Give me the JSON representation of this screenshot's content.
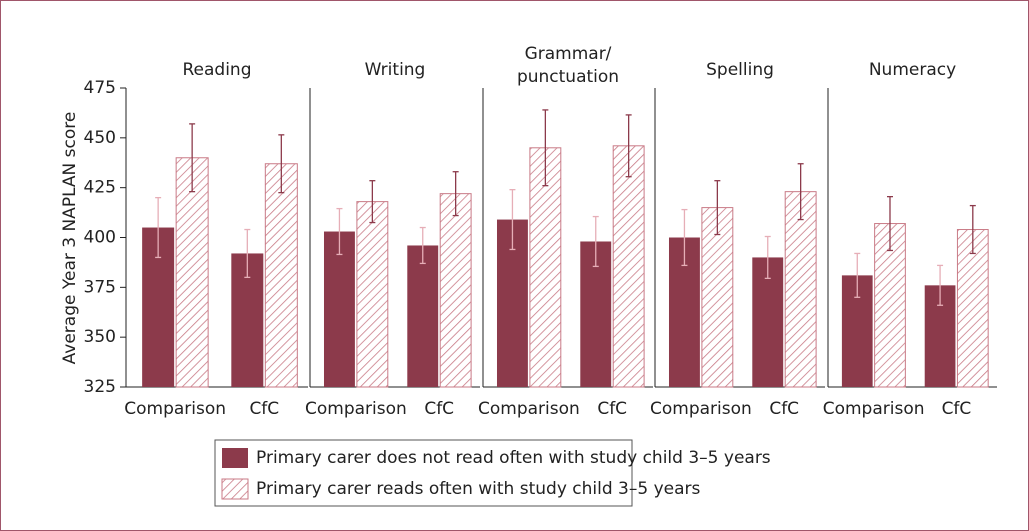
{
  "chart_data": {
    "type": "bar",
    "ylabel": "Average Year 3 NAPLAN score",
    "ylim": [
      325,
      475
    ],
    "yticks": [
      325,
      350,
      375,
      400,
      425,
      450,
      475
    ],
    "categories": [
      "Comparison",
      "CfC"
    ],
    "series": [
      {
        "name": "Primary carer does not read often with study child 3–5 years",
        "color": "#8c3a4b",
        "hatch": false
      },
      {
        "name": "Primary carer reads often with study child 3–5 years",
        "color": "#c97a86",
        "hatch": true
      }
    ],
    "panels": [
      {
        "title": "Reading",
        "series": [
          {
            "values": [
              405,
              392
            ],
            "errors": [
              15,
              12
            ]
          },
          {
            "values": [
              440,
              437
            ],
            "errors": [
              17,
              14.5
            ]
          }
        ]
      },
      {
        "title": "Writing",
        "series": [
          {
            "values": [
              403,
              396
            ],
            "errors": [
              11.5,
              9
            ]
          },
          {
            "values": [
              418,
              422
            ],
            "errors": [
              10.5,
              11
            ]
          }
        ]
      },
      {
        "title": "Grammar/\npunctuation",
        "series": [
          {
            "values": [
              409,
              398
            ],
            "errors": [
              15,
              12.5
            ]
          },
          {
            "values": [
              445,
              446
            ],
            "errors": [
              19,
              15.5
            ]
          }
        ]
      },
      {
        "title": "Spelling",
        "series": [
          {
            "values": [
              400,
              390
            ],
            "errors": [
              14,
              10.5
            ]
          },
          {
            "values": [
              415,
              423
            ],
            "errors": [
              13.5,
              14
            ]
          }
        ]
      },
      {
        "title": "Numeracy",
        "series": [
          {
            "values": [
              381,
              376
            ],
            "errors": [
              11,
              10
            ]
          },
          {
            "values": [
              407,
              404
            ],
            "errors": [
              13.5,
              12
            ]
          }
        ]
      }
    ]
  }
}
